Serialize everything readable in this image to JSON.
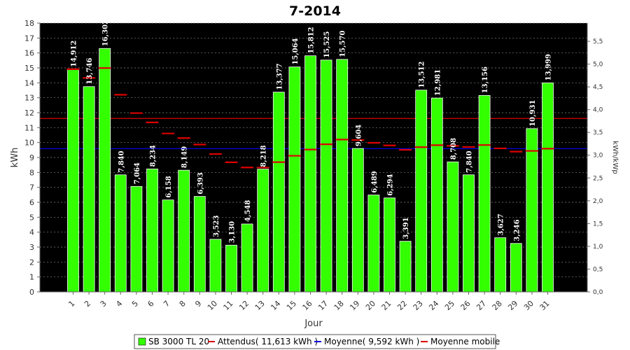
{
  "chart_data": {
    "type": "bar",
    "title": "7-2014",
    "xlabel": "Jour",
    "ylabel": "kWh",
    "y2label": "kWh/kWp",
    "ylim": [
      0,
      18
    ],
    "y2lim": [
      0,
      5.9
    ],
    "yticks": [
      "0",
      "1",
      "2",
      "3",
      "4",
      "5",
      "6",
      "7",
      "8",
      "9",
      "10",
      "11",
      "12",
      "13",
      "14",
      "15",
      "16",
      "17",
      "18"
    ],
    "y2ticks": [
      "0,0",
      "0,5",
      "1,0",
      "1,5",
      "2,0",
      "2,5",
      "3,0",
      "3,5",
      "4,0",
      "4,5",
      "5,0",
      "5,5"
    ],
    "categories": [
      "1",
      "2",
      "3",
      "4",
      "5",
      "6",
      "7",
      "8",
      "9",
      "10",
      "11",
      "12",
      "13",
      "14",
      "15",
      "16",
      "17",
      "18",
      "19",
      "20",
      "21",
      "22",
      "23",
      "24",
      "25",
      "26",
      "27",
      "28",
      "29",
      "30",
      "31"
    ],
    "series": [
      {
        "name": "SB 3000 TL 20",
        "color": "#33ff00",
        "values": [
          14.912,
          13.746,
          16.302,
          7.84,
          7.064,
          8.234,
          6.158,
          8.149,
          6.393,
          3.523,
          3.13,
          4.548,
          8.218,
          13.377,
          15.064,
          15.812,
          15.525,
          15.57,
          9.604,
          6.489,
          6.294,
          3.391,
          13.512,
          12.981,
          8.708,
          7.84,
          13.156,
          3.627,
          3.246,
          10.931,
          13.999
        ],
        "labels": [
          "14,912",
          "13,746",
          "16,302",
          "7,840",
          "7,064",
          "8,234",
          "6,158",
          "8,149",
          "6,393",
          "3,523",
          "3,130",
          "4,548",
          "8,218",
          "13,377",
          "15,064",
          "15,812",
          "15,525",
          "15,570",
          "9,604",
          "6,489",
          "6,294",
          "3,391",
          "13,512",
          "12,981",
          "8,708",
          "7,840",
          "13,156",
          "3,627",
          "3,246",
          "10,931",
          "13,999"
        ]
      },
      {
        "name": "Moyenne mobile",
        "color": "#dd0000",
        "values": [
          14.912,
          14.329,
          14.987,
          13.2,
          11.973,
          11.35,
          10.608,
          10.3,
          9.866,
          9.232,
          8.677,
          8.332,
          8.323,
          8.69,
          9.114,
          9.532,
          9.884,
          10.2,
          10.168,
          9.984,
          9.809,
          9.517,
          9.69,
          9.826,
          9.78,
          9.706,
          9.834,
          9.612,
          9.392,
          9.443,
          9.592
        ]
      }
    ],
    "reference_lines": [
      {
        "name": "Attendus( 11,613 kWh )",
        "value": 11.613,
        "color": "#dd0000"
      },
      {
        "name": "Moyenne( 9,592 kWh )",
        "value": 9.592,
        "color": "#0000dd"
      }
    ],
    "legend": {
      "placement": "bottom",
      "items": [
        {
          "label": "SB 3000 TL 20",
          "kind": "box",
          "color": "#33ff00"
        },
        {
          "label": "Attendus( 11,613 kWh )",
          "kind": "line",
          "color": "#dd0000"
        },
        {
          "label": "Moyenne( 9,592 kWh )",
          "kind": "line",
          "color": "#0000dd"
        },
        {
          "label": "Moyenne mobile",
          "kind": "line",
          "color": "#dd0000"
        }
      ]
    },
    "plot_background": "#000000",
    "grid": true
  }
}
